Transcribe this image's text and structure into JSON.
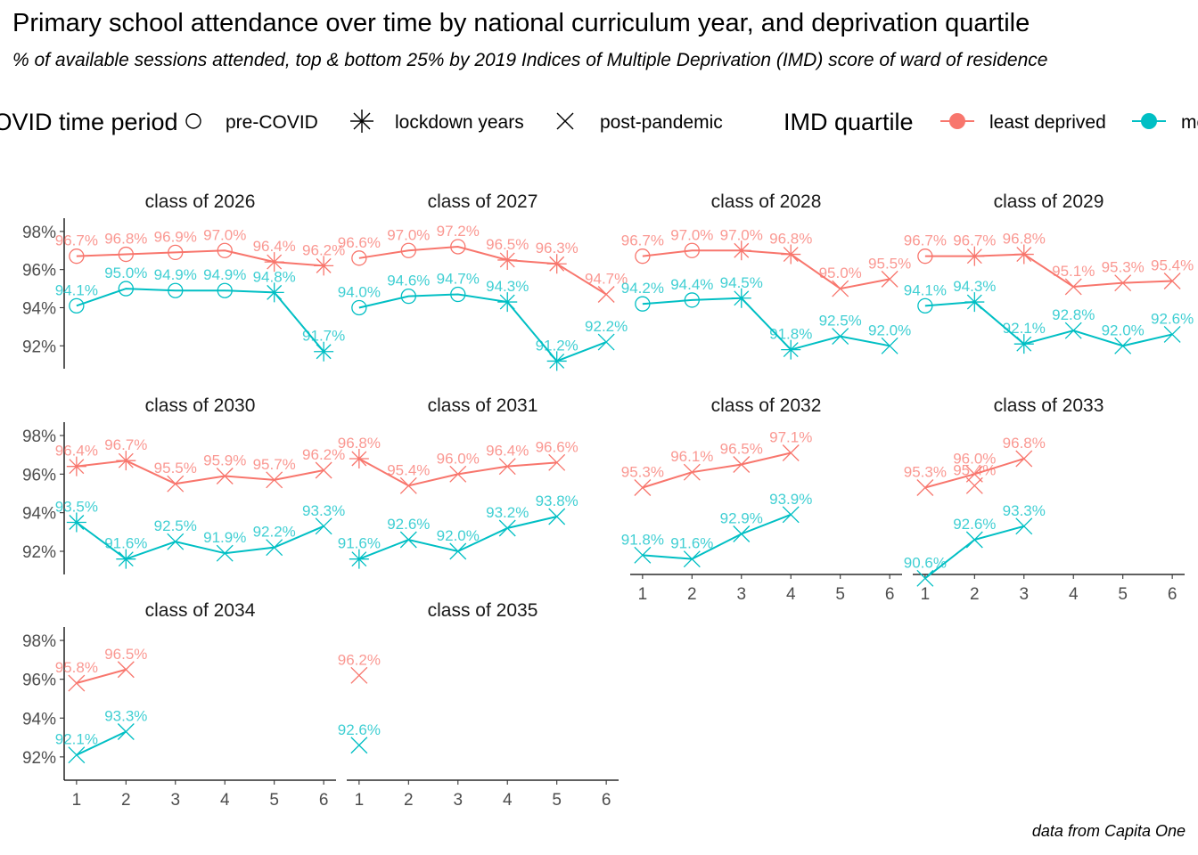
{
  "title": "Primary school attendance over time by national curriculum year, and deprivation quartile",
  "subtitle": "% of available sessions attended, top & bottom 25% by 2019 Indices of Multiple Deprivation (IMD) score of ward of residence",
  "caption": "data from Capita One",
  "legend": {
    "period_title": "COVID time period",
    "periods": [
      "pre-COVID",
      "lockdown years",
      "post-pandemic"
    ],
    "quartile_title": "IMD quartile",
    "quartiles": [
      "least deprived",
      "most deprived"
    ]
  },
  "colors": {
    "least deprived": "#F8766D",
    "most deprived": "#00BFC4",
    "axis": "#000000",
    "tick_text": "#4D4D4D"
  },
  "chart_data": {
    "type": "line",
    "xlabel": "",
    "ylabel": "",
    "x_ticks": [
      1,
      2,
      3,
      4,
      5,
      6
    ],
    "y_ticks": [
      "92%",
      "94%",
      "96%",
      "98%"
    ],
    "ylim": [
      90.8,
      98.6
    ],
    "xlim": [
      0.75,
      6.25
    ],
    "grid": false,
    "legend_position": "top",
    "panels": [
      {
        "label": "class of 2026",
        "series": [
          {
            "name": "least deprived",
            "x": [
              1,
              2,
              3,
              4,
              5,
              6
            ],
            "values": [
              96.7,
              96.8,
              96.9,
              97.0,
              96.4,
              96.2
            ],
            "periods": [
              "pre-COVID",
              "pre-COVID",
              "pre-COVID",
              "pre-COVID",
              "lockdown years",
              "lockdown years"
            ]
          },
          {
            "name": "most deprived",
            "x": [
              1,
              2,
              3,
              4,
              5,
              6
            ],
            "values": [
              94.1,
              95.0,
              94.9,
              94.9,
              94.8,
              91.7
            ],
            "periods": [
              "pre-COVID",
              "pre-COVID",
              "pre-COVID",
              "pre-COVID",
              "lockdown years",
              "lockdown years"
            ]
          }
        ]
      },
      {
        "label": "class of 2027",
        "series": [
          {
            "name": "least deprived",
            "x": [
              1,
              2,
              3,
              4,
              5,
              6
            ],
            "values": [
              96.6,
              97.0,
              97.2,
              96.5,
              96.3,
              94.7
            ],
            "periods": [
              "pre-COVID",
              "pre-COVID",
              "pre-COVID",
              "lockdown years",
              "lockdown years",
              "post-pandemic"
            ]
          },
          {
            "name": "most deprived",
            "x": [
              1,
              2,
              3,
              4,
              5,
              6
            ],
            "values": [
              94.0,
              94.6,
              94.7,
              94.3,
              91.2,
              92.2
            ],
            "periods": [
              "pre-COVID",
              "pre-COVID",
              "pre-COVID",
              "lockdown years",
              "lockdown years",
              "post-pandemic"
            ]
          }
        ]
      },
      {
        "label": "class of 2028",
        "series": [
          {
            "name": "least deprived",
            "x": [
              1,
              2,
              3,
              4,
              5,
              6
            ],
            "values": [
              96.7,
              97.0,
              97.0,
              96.8,
              95.0,
              95.5
            ],
            "periods": [
              "pre-COVID",
              "pre-COVID",
              "lockdown years",
              "lockdown years",
              "post-pandemic",
              "post-pandemic"
            ]
          },
          {
            "name": "most deprived",
            "x": [
              1,
              2,
              3,
              4,
              5,
              6
            ],
            "values": [
              94.2,
              94.4,
              94.5,
              91.8,
              92.5,
              92.0
            ],
            "periods": [
              "pre-COVID",
              "pre-COVID",
              "lockdown years",
              "lockdown years",
              "post-pandemic",
              "post-pandemic"
            ]
          }
        ]
      },
      {
        "label": "class of 2029",
        "series": [
          {
            "name": "least deprived",
            "x": [
              1,
              2,
              3,
              4,
              5,
              6
            ],
            "values": [
              96.7,
              96.7,
              96.8,
              95.1,
              95.3,
              95.4
            ],
            "periods": [
              "pre-COVID",
              "lockdown years",
              "lockdown years",
              "post-pandemic",
              "post-pandemic",
              "post-pandemic"
            ]
          },
          {
            "name": "most deprived",
            "x": [
              1,
              2,
              3,
              4,
              5,
              6
            ],
            "values": [
              94.1,
              94.3,
              92.1,
              92.8,
              92.0,
              92.6
            ],
            "periods": [
              "pre-COVID",
              "lockdown years",
              "lockdown years",
              "post-pandemic",
              "post-pandemic",
              "post-pandemic"
            ]
          }
        ]
      },
      {
        "label": "class of 2030",
        "series": [
          {
            "name": "least deprived",
            "x": [
              1,
              2,
              3,
              4,
              5,
              6
            ],
            "values": [
              96.4,
              96.7,
              95.5,
              95.9,
              95.7,
              96.2
            ],
            "periods": [
              "lockdown years",
              "lockdown years",
              "post-pandemic",
              "post-pandemic",
              "post-pandemic",
              "post-pandemic"
            ]
          },
          {
            "name": "most deprived",
            "x": [
              1,
              2,
              3,
              4,
              5,
              6
            ],
            "values": [
              93.5,
              91.6,
              92.5,
              91.9,
              92.2,
              93.3
            ],
            "periods": [
              "lockdown years",
              "lockdown years",
              "post-pandemic",
              "post-pandemic",
              "post-pandemic",
              "post-pandemic"
            ]
          }
        ]
      },
      {
        "label": "class of 2031",
        "series": [
          {
            "name": "least deprived",
            "x": [
              1,
              2,
              3,
              4,
              5
            ],
            "values": [
              96.8,
              95.4,
              96.0,
              96.4,
              96.6
            ],
            "periods": [
              "lockdown years",
              "post-pandemic",
              "post-pandemic",
              "post-pandemic",
              "post-pandemic"
            ]
          },
          {
            "name": "most deprived",
            "x": [
              1,
              2,
              3,
              4,
              5
            ],
            "values": [
              91.6,
              92.6,
              92.0,
              93.2,
              93.8
            ],
            "periods": [
              "lockdown years",
              "post-pandemic",
              "post-pandemic",
              "post-pandemic",
              "post-pandemic"
            ]
          }
        ]
      },
      {
        "label": "class of 2032",
        "series": [
          {
            "name": "least deprived",
            "x": [
              1,
              2,
              3,
              4
            ],
            "values": [
              95.3,
              96.1,
              96.5,
              97.1
            ],
            "periods": [
              "post-pandemic",
              "post-pandemic",
              "post-pandemic",
              "post-pandemic"
            ]
          },
          {
            "name": "most deprived",
            "x": [
              1,
              2,
              3,
              4
            ],
            "values": [
              91.8,
              91.6,
              92.9,
              93.9
            ],
            "periods": [
              "post-pandemic",
              "post-pandemic",
              "post-pandemic",
              "post-pandemic"
            ]
          }
        ]
      },
      {
        "label": "class of 2033",
        "series": [
          {
            "name": "least deprived",
            "x": [
              1,
              2,
              3
            ],
            "values": [
              95.3,
              96.0,
              96.8
            ],
            "periods": [
              "post-pandemic",
              "post-pandemic",
              "post-pandemic"
            ],
            "extra": {
              "x": 2,
              "value": 95.4,
              "label": "95.4%"
            }
          },
          {
            "name": "most deprived",
            "x": [
              1,
              2,
              3
            ],
            "values": [
              90.6,
              92.6,
              93.3
            ],
            "periods": [
              "post-pandemic",
              "post-pandemic",
              "post-pandemic"
            ]
          }
        ]
      },
      {
        "label": "class of 2034",
        "series": [
          {
            "name": "least deprived",
            "x": [
              1,
              2
            ],
            "values": [
              95.8,
              96.5
            ],
            "periods": [
              "post-pandemic",
              "post-pandemic"
            ]
          },
          {
            "name": "most deprived",
            "x": [
              1,
              2
            ],
            "values": [
              92.1,
              93.3
            ],
            "periods": [
              "post-pandemic",
              "post-pandemic"
            ]
          }
        ]
      },
      {
        "label": "class of 2035",
        "series": [
          {
            "name": "least deprived",
            "x": [
              1
            ],
            "values": [
              96.2
            ],
            "periods": [
              "post-pandemic"
            ]
          },
          {
            "name": "most deprived",
            "x": [
              1
            ],
            "values": [
              92.6
            ],
            "periods": [
              "post-pandemic"
            ]
          }
        ]
      }
    ]
  }
}
